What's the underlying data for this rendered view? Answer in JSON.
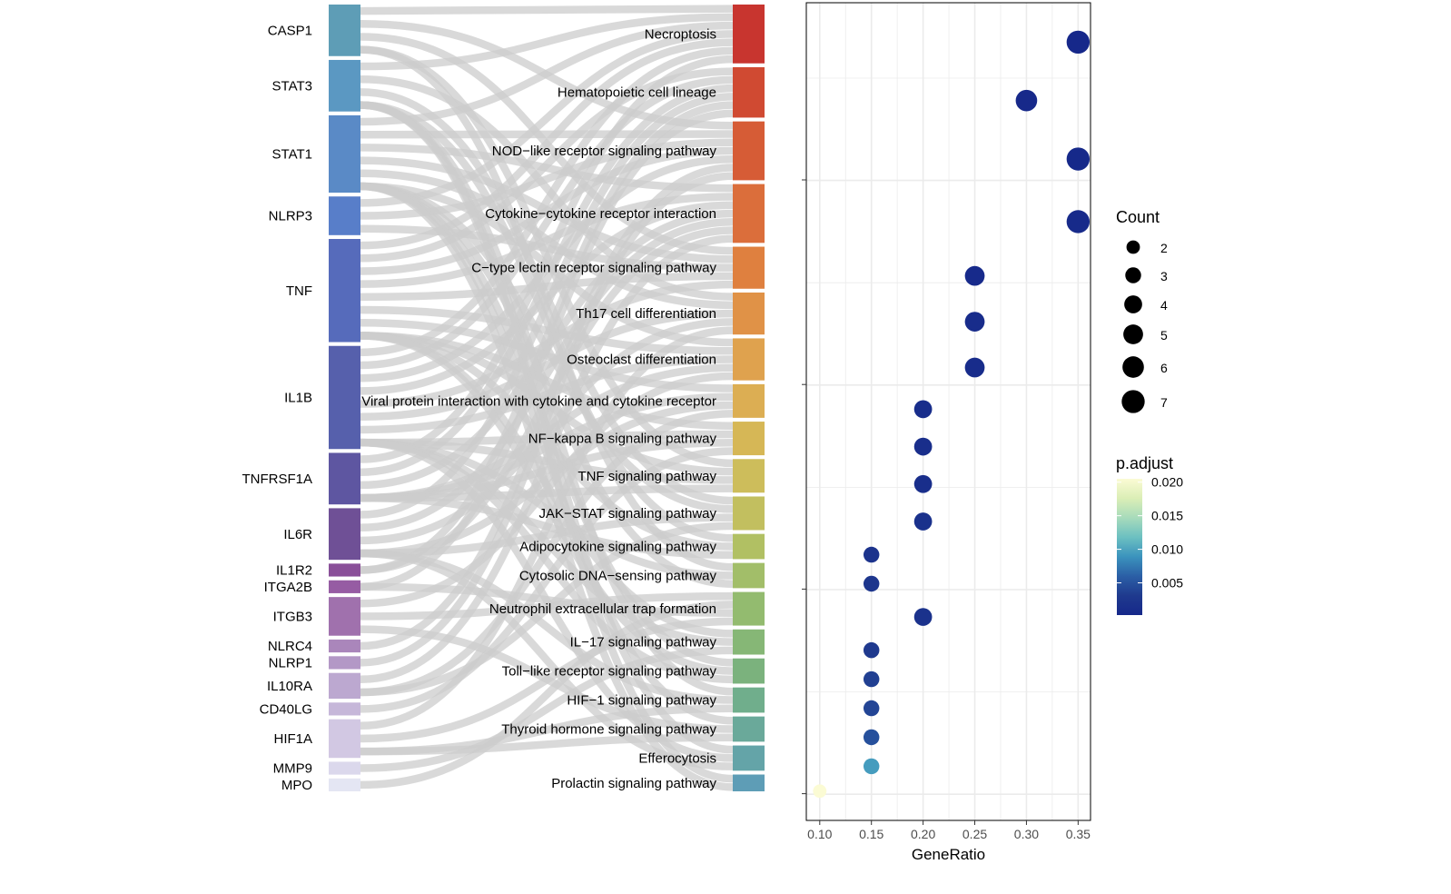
{
  "chart_data": [
    {
      "type": "sankey",
      "genes": [
        {
          "name": "CASP1",
          "links": 4,
          "color": "#5e9db6"
        },
        {
          "name": "STAT3",
          "links": 4,
          "color": "#5b98c2"
        },
        {
          "name": "STAT1",
          "links": 6,
          "color": "#5a8ac6"
        },
        {
          "name": "NLRP3",
          "links": 3,
          "color": "#587ec9"
        },
        {
          "name": "TNF",
          "links": 8,
          "color": "#566bbb"
        },
        {
          "name": "IL1B",
          "links": 8,
          "color": "#5660ac"
        },
        {
          "name": "TNFRSF1A",
          "links": 4,
          "color": "#5e56a1"
        },
        {
          "name": "IL6R",
          "links": 4,
          "color": "#6f5096"
        },
        {
          "name": "IL1R2",
          "links": 1,
          "color": "#8a4f99"
        },
        {
          "name": "ITGA2B",
          "links": 1,
          "color": "#965ca3"
        },
        {
          "name": "ITGB3",
          "links": 3,
          "color": "#a071ad"
        },
        {
          "name": "NLRC4",
          "links": 1,
          "color": "#aa86bb"
        },
        {
          "name": "NLRP1",
          "links": 1,
          "color": "#b398c6"
        },
        {
          "name": "IL10RA",
          "links": 2,
          "color": "#bca8d0"
        },
        {
          "name": "CD40LG",
          "links": 1,
          "color": "#c6b7d9"
        },
        {
          "name": "HIF1A",
          "links": 3,
          "color": "#d2c8e3"
        },
        {
          "name": "MMP9",
          "links": 1,
          "color": "#dbd8ec"
        },
        {
          "name": "MPO",
          "links": 1,
          "color": "#e4e6f3"
        }
      ],
      "pathways": [
        {
          "name": "Necroptosis",
          "count": 7,
          "color": "#c8352f",
          "genes": [
            "CASP1",
            "STAT3",
            "STAT1",
            "NLRP3",
            "TNF",
            "IL1B",
            "TNFRSF1A"
          ]
        },
        {
          "name": "Hematopoietic cell lineage",
          "count": 6,
          "color": "#d04a32",
          "genes": [
            "TNF",
            "IL1B",
            "TNFRSF1A",
            "IL6R",
            "IL1R2",
            "ITGA2B"
          ]
        },
        {
          "name": "NOD−like receptor signaling pathway",
          "count": 7,
          "color": "#d65c36",
          "genes": [
            "CASP1",
            "STAT1",
            "NLRP3",
            "TNF",
            "IL1B",
            "NLRC4",
            "NLRP1"
          ]
        },
        {
          "name": "Cytokine−cytokine receptor interaction",
          "count": 7,
          "color": "#db6e3b",
          "genes": [
            "STAT1",
            "TNF",
            "IL1B",
            "TNFRSF1A",
            "IL6R",
            "IL1R2",
            "IL10RA"
          ]
        },
        {
          "name": "C−type lectin receptor signaling pathway",
          "count": 5,
          "color": "#df803f",
          "genes": [
            "CASP1",
            "STAT1",
            "NLRP3",
            "TNF",
            "IL1B"
          ]
        },
        {
          "name": "Th17 cell differentiation",
          "count": 5,
          "color": "#e09247",
          "genes": [
            "STAT3",
            "STAT1",
            "IL1B",
            "IL6R",
            "HIF1A"
          ]
        },
        {
          "name": "Osteoclast differentiation",
          "count": 5,
          "color": "#dfa24e",
          "genes": [
            "STAT1",
            "TNF",
            "IL1B",
            "TNFRSF1A",
            "ITGB3"
          ]
        },
        {
          "name": "Viral protein interaction with cytokine and cytokine receptor",
          "count": 4,
          "color": "#dcae53",
          "genes": [
            "TNF",
            "TNFRSF1A",
            "IL6R",
            "IL10RA"
          ]
        },
        {
          "name": "NF−kappa B signaling pathway",
          "count": 4,
          "color": "#d6b756",
          "genes": [
            "TNF",
            "IL1B",
            "TNFRSF1A",
            "CD40LG"
          ]
        },
        {
          "name": "TNF signaling pathway",
          "count": 4,
          "color": "#cdbd5b",
          "genes": [
            "CASP1",
            "TNF",
            "IL1B",
            "TNFRSF1A"
          ]
        },
        {
          "name": "JAK−STAT signaling pathway",
          "count": 4,
          "color": "#c2bf5f",
          "genes": [
            "STAT3",
            "STAT1",
            "IL6R",
            "IL10RA"
          ]
        },
        {
          "name": "Adipocytokine signaling pathway",
          "count": 3,
          "color": "#b1c063",
          "genes": [
            "STAT3",
            "TNF",
            "TNFRSF1A"
          ]
        },
        {
          "name": "Cytosolic DNA−sensing pathway",
          "count": 3,
          "color": "#a2be69",
          "genes": [
            "CASP1",
            "IL1B",
            "STAT1"
          ]
        },
        {
          "name": "Neutrophil extracellular trap formation",
          "count": 4,
          "color": "#93bb6f",
          "genes": [
            "ITGB3",
            "MPO",
            "ITGA2B",
            "HIF1A"
          ]
        },
        {
          "name": "IL−17 signaling pathway",
          "count": 3,
          "color": "#86b776",
          "genes": [
            "TNF",
            "IL1B",
            "MMP9"
          ]
        },
        {
          "name": "Toll−like receptor signaling pathway",
          "count": 3,
          "color": "#7bb27d",
          "genes": [
            "STAT1",
            "TNF",
            "IL1B"
          ]
        },
        {
          "name": "HIF−1 signaling pathway",
          "count": 3,
          "color": "#70ae8c",
          "genes": [
            "STAT3",
            "IL6R",
            "HIF1A"
          ]
        },
        {
          "name": "Thyroid hormone signaling pathway",
          "count": 3,
          "color": "#6aa99a",
          "genes": [
            "STAT1",
            "ITGB3",
            "HIF1A"
          ]
        },
        {
          "name": "Efferocytosis",
          "count": 3,
          "color": "#64a4a8",
          "genes": [
            "STAT3",
            "IL1B",
            "IL6R"
          ]
        },
        {
          "name": "Prolactin signaling pathway",
          "count": 2,
          "color": "#5e9db6",
          "genes": [
            "STAT3",
            "STAT1"
          ]
        }
      ]
    },
    {
      "type": "scatter",
      "xlabel": "GeneRatio",
      "xlim": [
        0.087,
        0.362
      ],
      "xticks": [
        0.1,
        0.15,
        0.2,
        0.25,
        0.3,
        0.35
      ],
      "xtick_labels": [
        "0.10",
        "0.15",
        "0.20",
        "0.25",
        "0.30",
        "0.35"
      ],
      "points": [
        {
          "pathway": "Necroptosis",
          "x": 0.35,
          "count": 7,
          "p_adjust": 0.0002
        },
        {
          "pathway": "Hematopoietic cell lineage",
          "x": 0.3,
          "count": 6,
          "p_adjust": 0.0004
        },
        {
          "pathway": "NOD−like receptor signaling pathway",
          "x": 0.35,
          "count": 7,
          "p_adjust": 0.0003
        },
        {
          "pathway": "Cytokine−cytokine receptor interaction",
          "x": 0.35,
          "count": 7,
          "p_adjust": 0.0005
        },
        {
          "pathway": "C−type lectin receptor signaling pathway",
          "x": 0.25,
          "count": 5,
          "p_adjust": 0.0006
        },
        {
          "pathway": "Th17 cell differentiation",
          "x": 0.25,
          "count": 5,
          "p_adjust": 0.0008
        },
        {
          "pathway": "Osteoclast differentiation",
          "x": 0.25,
          "count": 5,
          "p_adjust": 0.0009
        },
        {
          "pathway": "Viral protein interaction with cytokine and cytokine receptor",
          "x": 0.2,
          "count": 4,
          "p_adjust": 0.001
        },
        {
          "pathway": "NF−kappa B signaling pathway",
          "x": 0.2,
          "count": 4,
          "p_adjust": 0.0011
        },
        {
          "pathway": "TNF signaling pathway",
          "x": 0.2,
          "count": 4,
          "p_adjust": 0.0012
        },
        {
          "pathway": "JAK−STAT signaling pathway",
          "x": 0.2,
          "count": 4,
          "p_adjust": 0.0016
        },
        {
          "pathway": "Adipocytokine signaling pathway",
          "x": 0.15,
          "count": 3,
          "p_adjust": 0.002
        },
        {
          "pathway": "Cytosolic DNA−sensing pathway",
          "x": 0.15,
          "count": 3,
          "p_adjust": 0.0024
        },
        {
          "pathway": "Neutrophil extracellular trap formation",
          "x": 0.2,
          "count": 4,
          "p_adjust": 0.0018
        },
        {
          "pathway": "IL−17 signaling pathway",
          "x": 0.15,
          "count": 3,
          "p_adjust": 0.003
        },
        {
          "pathway": "Toll−like receptor signaling pathway",
          "x": 0.15,
          "count": 3,
          "p_adjust": 0.0036
        },
        {
          "pathway": "HIF−1 signaling pathway",
          "x": 0.15,
          "count": 3,
          "p_adjust": 0.004
        },
        {
          "pathway": "Thyroid hormone signaling pathway",
          "x": 0.15,
          "count": 3,
          "p_adjust": 0.0048
        },
        {
          "pathway": "Efferocytosis",
          "x": 0.15,
          "count": 3,
          "p_adjust": 0.0095
        },
        {
          "pathway": "Prolactin signaling pathway",
          "x": 0.1,
          "count": 2,
          "p_adjust": 0.0205
        }
      ],
      "legend_count": {
        "title": "Count",
        "values": [
          2,
          3,
          4,
          5,
          6,
          7
        ]
      },
      "legend_color": {
        "title": "p.adjust",
        "range": [
          0.0002,
          0.0205
        ],
        "breaks": [
          0.02,
          0.015,
          0.01,
          0.005
        ],
        "break_labels": [
          "0.020",
          "0.015",
          "0.010",
          "0.005"
        ],
        "gradient": [
          "#fbfbd4",
          "#dbeeb6",
          "#a7dbbb",
          "#6cc0c1",
          "#3b93bd",
          "#2b5fa6",
          "#1f3a8e",
          "#16288a"
        ]
      },
      "colors": {
        "panel_border": "#000000",
        "grid": "#ebebeb",
        "axis_text": "#4d4d4d"
      }
    }
  ]
}
